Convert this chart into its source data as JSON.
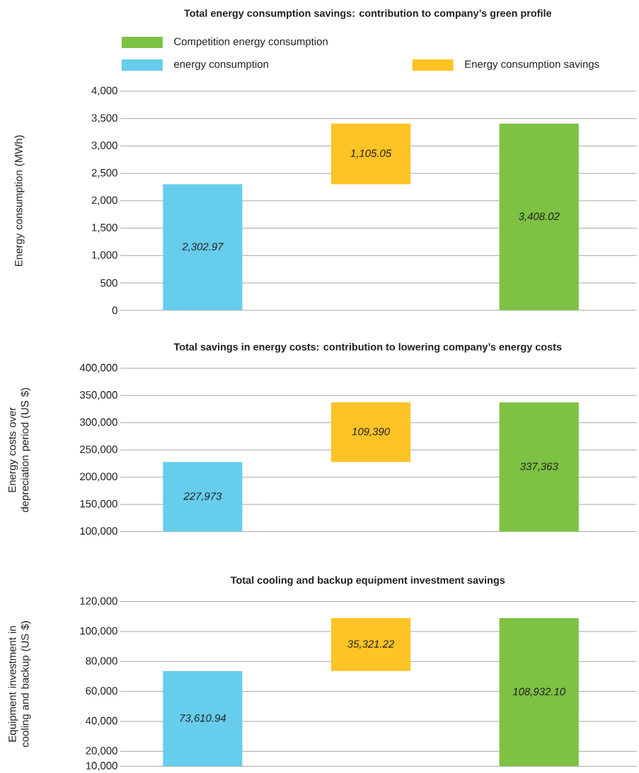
{
  "chart_data": [
    {
      "type": "bar",
      "title": "Total energy consumption savings: contribution to company’s green profile",
      "ylabel": "Energy consumption (MWh)",
      "categories": [
        null,
        null,
        null
      ],
      "legend": "top",
      "grid": "y",
      "ylim": [
        0,
        4000
      ],
      "yticks": [
        {
          "value": 0,
          "label": "0"
        },
        {
          "value": 500,
          "label": "500"
        },
        {
          "value": 1000,
          "label": "1,000"
        },
        {
          "value": 1500,
          "label": "1,500"
        },
        {
          "value": 2000,
          "label": "2,000"
        },
        {
          "value": 2500,
          "label": "2,500"
        },
        {
          "value": 3000,
          "label": "3,000"
        },
        {
          "value": 3500,
          "label": "3,500"
        },
        {
          "value": 4000,
          "label": "4,000"
        }
      ],
      "series": [
        {
          "name": "energy consumption",
          "color": "#66cdec",
          "values": [
            2302.97,
            null,
            null
          ],
          "value_labels": [
            "2,302.97",
            null,
            null
          ]
        },
        {
          "name": "Energy consumption savings",
          "color": "#fec325",
          "values": [
            null,
            1105.05,
            null
          ],
          "base": [
            null,
            2302.97,
            null
          ],
          "value_labels": [
            null,
            "1,105.05",
            null
          ]
        },
        {
          "name": "Competition energy consumption",
          "color": "#7dc243",
          "values": [
            null,
            null,
            3408.02
          ],
          "value_labels": [
            null,
            null,
            "3,408.02"
          ]
        }
      ]
    },
    {
      "type": "bar",
      "title": "Total savings in energy costs: contribution to lowering company’s energy costs",
      "ylabel": "Energy costs over depreciation period (US $)",
      "categories": [
        null,
        null,
        null
      ],
      "grid": "y",
      "ylim": [
        100000,
        400000
      ],
      "yticks": [
        {
          "value": 100000,
          "label": "100,000"
        },
        {
          "value": 150000,
          "label": "150,000"
        },
        {
          "value": 200000,
          "label": "200,000"
        },
        {
          "value": 250000,
          "label": "250,000"
        },
        {
          "value": 300000,
          "label": "300,000"
        },
        {
          "value": 350000,
          "label": "350,000"
        },
        {
          "value": 400000,
          "label": "400,000"
        }
      ],
      "series": [
        {
          "color": "#66cdec",
          "values": [
            227973,
            null,
            null
          ],
          "value_labels": [
            "227,973",
            null,
            null
          ]
        },
        {
          "color": "#fec325",
          "values": [
            null,
            109390,
            null
          ],
          "base": [
            null,
            227973,
            null
          ],
          "value_labels": [
            null,
            "109,390",
            null
          ]
        },
        {
          "color": "#7dc243",
          "values": [
            null,
            null,
            337363
          ],
          "value_labels": [
            null,
            null,
            "337,363"
          ]
        }
      ]
    },
    {
      "type": "bar",
      "title": "Total cooling and backup equipment investment savings",
      "ylabel": "Equipment investment in cooling and backup (US $)",
      "categories": [
        null,
        null,
        null
      ],
      "grid": "y",
      "ylim": [
        10000,
        120000
      ],
      "yticks": [
        {
          "value": 10000,
          "label": "10,000"
        },
        {
          "value": 20000,
          "label": "20,000"
        },
        {
          "value": 40000,
          "label": "40,000"
        },
        {
          "value": 60000,
          "label": "60,000"
        },
        {
          "value": 80000,
          "label": "80,000"
        },
        {
          "value": 100000,
          "label": "100,000"
        },
        {
          "value": 120000,
          "label": "120,000"
        }
      ],
      "series": [
        {
          "color": "#66cdec",
          "values": [
            73610.94,
            null,
            null
          ],
          "value_labels": [
            "73,610.94",
            null,
            null
          ]
        },
        {
          "color": "#fec325",
          "values": [
            null,
            35321.22,
            null
          ],
          "base": [
            null,
            73610.94,
            null
          ],
          "value_labels": [
            null,
            "35,321.22",
            null
          ]
        },
        {
          "color": "#7dc243",
          "values": [
            null,
            null,
            108932.1
          ],
          "value_labels": [
            null,
            null,
            "108,932.10"
          ]
        }
      ]
    }
  ]
}
